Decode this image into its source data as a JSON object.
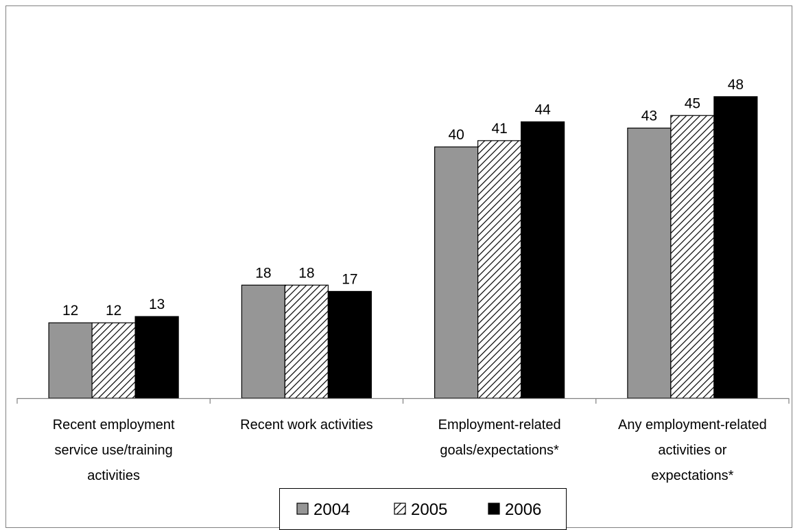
{
  "chart_data": {
    "type": "bar",
    "title": "",
    "xlabel": "",
    "ylabel": "",
    "ylim": [
      0,
      55
    ],
    "grid": false,
    "legend_position": "bottom",
    "categories": [
      [
        "Recent employment",
        "service use/training",
        "activities"
      ],
      [
        "Recent work activities"
      ],
      [
        "Employment-related",
        "goals/expectations*"
      ],
      [
        "Any employment-related",
        "activities or",
        "expectations*"
      ]
    ],
    "series": [
      {
        "name": "2004",
        "values": [
          12,
          18,
          40,
          43
        ],
        "fill": "#969696",
        "pattern": "solid"
      },
      {
        "name": "2005",
        "values": [
          12,
          18,
          41,
          45
        ],
        "fill": "#ffffff",
        "pattern": "diagonal-hatch"
      },
      {
        "name": "2006",
        "values": [
          13,
          17,
          44,
          48
        ],
        "fill": "#000000",
        "pattern": "solid"
      }
    ],
    "colors": {
      "axis": "#808080",
      "frame": "#808080",
      "text": "#000000"
    }
  }
}
